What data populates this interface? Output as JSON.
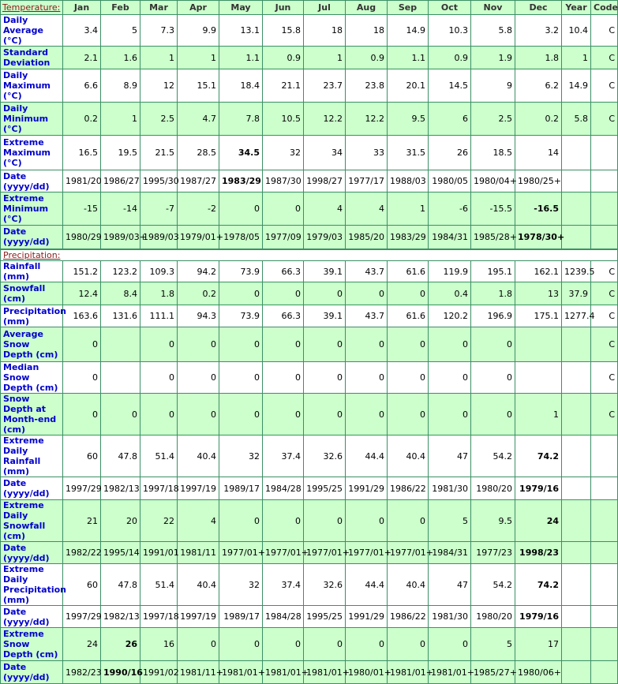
{
  "table": {
    "header": [
      "Jan",
      "Feb",
      "Mar",
      "Apr",
      "May",
      "Jun",
      "Jul",
      "Aug",
      "Sep",
      "Oct",
      "Nov",
      "Dec",
      "Year",
      "Code"
    ],
    "sections": [
      {
        "title": "Temperature:",
        "rows": [
          {
            "label": "Daily Average (°C)",
            "cells": [
              3.4,
              5,
              7.3,
              9.9,
              13.1,
              15.8,
              18,
              18,
              14.9,
              10.3,
              5.8,
              3.2,
              10.4,
              "C"
            ]
          },
          {
            "label": "Standard Deviation",
            "cells": [
              2.1,
              1.6,
              1,
              1,
              1.1,
              0.9,
              1,
              0.9,
              1.1,
              0.9,
              1.9,
              1.8,
              1,
              "C"
            ]
          },
          {
            "label": "Daily Maximum (°C)",
            "cells": [
              6.6,
              8.9,
              12,
              15.1,
              18.4,
              21.1,
              23.7,
              23.8,
              20.1,
              14.5,
              9,
              6.2,
              14.9,
              "C"
            ]
          },
          {
            "label": "Daily Minimum (°C)",
            "cells": [
              0.2,
              1,
              2.5,
              4.7,
              7.8,
              10.5,
              12.2,
              12.2,
              9.5,
              6,
              2.5,
              0.2,
              5.8,
              "C"
            ]
          },
          {
            "label": "Extreme Maximum (°C)",
            "cells": [
              16.5,
              19.5,
              21.5,
              28.5,
              34.5,
              32,
              34,
              33,
              31.5,
              26,
              18.5,
              14,
              null,
              null
            ]
          },
          {
            "label": "Date (yyyy/dd)",
            "cells": [
              "1981/20",
              "1986/27",
              "1995/30",
              "1987/27",
              "1983/29",
              "1987/30",
              "1998/27",
              "1977/17",
              "1988/03",
              "1980/05",
              "1980/04+",
              "1980/25+",
              null,
              null
            ]
          },
          {
            "label": "Extreme Minimum (°C)",
            "cells": [
              -15,
              -14,
              -7,
              -2,
              0,
              0,
              4,
              4,
              1,
              -6,
              -15.5,
              -16.5,
              null,
              null
            ]
          },
          {
            "label": "Date (yyyy/dd)",
            "cells": [
              "1980/29",
              "1989/03+",
              "1989/03",
              "1979/01+",
              "1978/05",
              "1977/09",
              "1979/03",
              "1985/20",
              "1983/29",
              "1984/31",
              "1985/28+",
              "1978/30+",
              null,
              null
            ]
          }
        ]
      },
      {
        "title": "Precipitation:",
        "rows": [
          {
            "label": "Rainfall (mm)",
            "cells": [
              151.2,
              123.2,
              109.3,
              94.2,
              73.9,
              66.3,
              39.1,
              43.7,
              61.6,
              119.9,
              195.1,
              162.1,
              1239.5,
              "C"
            ]
          },
          {
            "label": "Snowfall (cm)",
            "cells": [
              12.4,
              8.4,
              1.8,
              0.2,
              0,
              0,
              0,
              0,
              0,
              0.4,
              1.8,
              13,
              37.9,
              "C"
            ]
          },
          {
            "label": "Precipitation (mm)",
            "cells": [
              163.6,
              131.6,
              111.1,
              94.3,
              73.9,
              66.3,
              39.1,
              43.7,
              61.6,
              120.2,
              196.9,
              175.1,
              1277.4,
              "C"
            ]
          },
          {
            "label": "Average Snow Depth (cm)",
            "cells": [
              0,
              null,
              0,
              0,
              0,
              0,
              0,
              0,
              0,
              0,
              0,
              null,
              null,
              "C"
            ]
          },
          {
            "label": "Median Snow Depth (cm)",
            "cells": [
              0,
              null,
              0,
              0,
              0,
              0,
              0,
              0,
              0,
              0,
              0,
              null,
              null,
              "C"
            ]
          },
          {
            "label": "Snow Depth at Month-end (cm)",
            "cells": [
              0,
              0,
              0,
              0,
              0,
              0,
              0,
              0,
              0,
              0,
              0,
              1,
              null,
              "C"
            ]
          },
          {
            "label": "Extreme Daily Rainfall (mm)",
            "cells": [
              60,
              47.8,
              51.4,
              40.4,
              32,
              37.4,
              32.6,
              44.4,
              40.4,
              47,
              54.2,
              74.2,
              null,
              null
            ]
          },
          {
            "label": "Date (yyyy/dd)",
            "cells": [
              "1997/29",
              "1982/13",
              "1997/18",
              "1997/19",
              "1989/17",
              "1984/28",
              "1995/25",
              "1991/29",
              "1986/22",
              "1981/30",
              "1980/20",
              "1979/16",
              null,
              null
            ]
          },
          {
            "label": "Extreme Daily Snowfall (cm)",
            "cells": [
              21,
              20,
              22,
              4,
              0,
              0,
              0,
              0,
              0,
              5,
              9.5,
              24,
              null,
              null
            ]
          },
          {
            "label": "Date (yyyy/dd)",
            "cells": [
              "1982/22",
              "1995/14",
              "1991/01",
              "1981/11",
              "1977/01+",
              "1977/01+",
              "1977/01+",
              "1977/01+",
              "1977/01+",
              "1984/31",
              "1977/23",
              "1998/23",
              null,
              null
            ]
          },
          {
            "label": "Extreme Daily Precipitation (mm)",
            "cells": [
              60,
              47.8,
              51.4,
              40.4,
              32,
              37.4,
              32.6,
              44.4,
              40.4,
              47,
              54.2,
              74.2,
              null,
              null
            ]
          },
          {
            "label": "Date (yyyy/dd)",
            "cells": [
              "1997/29",
              "1982/13",
              "1997/18",
              "1997/19",
              "1989/17",
              "1984/28",
              "1995/25",
              "1991/29",
              "1986/22",
              "1981/30",
              "1980/20",
              "1979/16",
              null,
              null
            ]
          },
          {
            "label": "Extreme Snow Depth (cm)",
            "cells": [
              24,
              26,
              16,
              0,
              0,
              0,
              0,
              0,
              0,
              0,
              5,
              17,
              null,
              null
            ]
          },
          {
            "label": "Date (yyyy/dd)",
            "cells": [
              "1982/23",
              "1990/16",
              "1991/02",
              "1981/11+",
              "1981/01+",
              "1981/01+",
              "1981/01+",
              "1980/01+",
              "1981/01+",
              "1981/01+",
              "1985/27+",
              "1980/06+",
              null,
              null
            ]
          }
        ]
      }
    ]
  }
}
